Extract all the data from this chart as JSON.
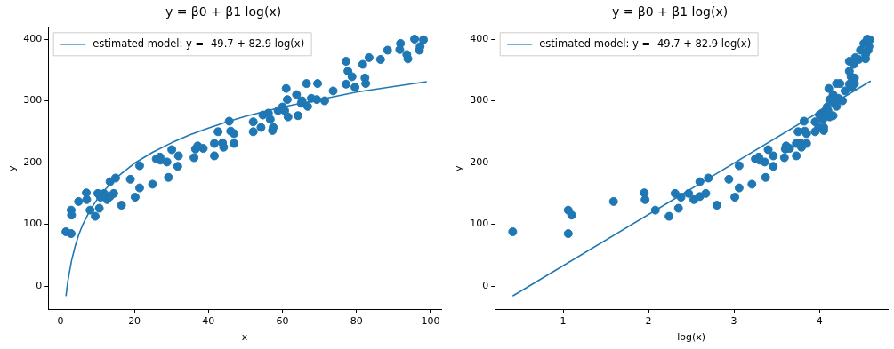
{
  "chart_data": [
    {
      "type": "scatter",
      "title": "y = β0 + β1 log(x)",
      "xlabel": "x",
      "ylabel": "y",
      "xlim": [
        -3.3,
        102.9
      ],
      "ylim": [
        -38,
        419
      ],
      "xticks": [
        0,
        20,
        40,
        60,
        80,
        100
      ],
      "yticks": [
        0,
        100,
        200,
        300,
        400
      ],
      "grid": false,
      "legend": "top left",
      "marker": "circle",
      "series": [
        {
          "color": "#1f77b4",
          "x": [
            1.5,
            2.9,
            2.9,
            3.0,
            4.9,
            7.0,
            7.1,
            8.0,
            9.4,
            10.5,
            10.1,
            10.8,
            11.8,
            12.6,
            13.4,
            14.4,
            13.4,
            14.9,
            16.5,
            18.9,
            20.2,
            21.4,
            21.4,
            24.9,
            25.9,
            26.9,
            27.0,
            28.8,
            29.2,
            30.1,
            31.7,
            31.9,
            36.1,
            36.5,
            37.1,
            38.6,
            41.6,
            41.6,
            42.6,
            43.8,
            44.1,
            45.6,
            46.0,
            46.9,
            46.9,
            52.1,
            52.1,
            54.2,
            54.7,
            56.2,
            56.7,
            57.3,
            57.5,
            58.8,
            60.0,
            60.6,
            61.3,
            61.0,
            61.5,
            63.8,
            64.2,
            65.1,
            65.3,
            66.5,
            66.8,
            67.8,
            69.5,
            69.3,
            71.4,
            73.7,
            77.2,
            77.7,
            78.8,
            77.2,
            79.6,
            82.3,
            82.5,
            81.7,
            83.4,
            86.5,
            88.4,
            91.9,
            91.7,
            93.6,
            93.9,
            95.7,
            98.1,
            97.0,
            97.2
          ],
          "values": [
            88,
            85,
            123,
            115,
            137,
            151,
            140,
            123,
            113,
            126,
            150,
            144,
            150,
            140,
            145,
            150,
            169,
            175,
            131,
            173,
            144,
            159,
            195,
            165,
            206,
            209,
            204,
            201,
            176,
            221,
            194,
            211,
            208,
            222,
            227,
            223,
            211,
            231,
            250,
            232,
            225,
            267,
            251,
            247,
            231,
            266,
            250,
            257,
            277,
            280,
            270,
            252,
            257,
            284,
            290,
            284,
            302,
            320,
            274,
            310,
            276,
            296,
            300,
            328,
            291,
            304,
            328,
            302,
            300,
            316,
            364,
            348,
            339,
            327,
            322,
            337,
            328,
            359,
            370,
            367,
            382,
            393,
            383,
            375,
            368,
            400,
            399,
            382,
            388
          ]
        },
        {
          "type": "line",
          "marker": "none",
          "name": "estimated model: y = -49.7 + 82.9 log(x)",
          "color": "#1f77b4",
          "x": [
            1.5,
            2,
            3,
            4,
            5,
            6,
            8,
            10,
            12,
            15,
            20,
            25,
            30,
            35,
            40,
            45,
            50,
            60,
            70,
            80,
            90,
            99
          ],
          "values": [
            -16,
            8,
            41,
            65,
            84,
            99,
            123,
            141,
            156,
            175,
            199,
            217,
            232,
            245,
            256,
            266,
            275,
            290,
            302,
            314,
            323,
            331
          ]
        }
      ]
    },
    {
      "type": "scatter",
      "title": "y = β0 + β1 log(x)",
      "xlabel": "log(x)",
      "ylabel": "y",
      "xlim": [
        0.2,
        4.8
      ],
      "ylim": [
        -38,
        419
      ],
      "xticks": [
        1,
        2,
        3,
        4
      ],
      "yticks": [
        0,
        100,
        200,
        300,
        400
      ],
      "grid": false,
      "legend": "top left",
      "marker": "circle",
      "series": [
        {
          "color": "#1f77b4",
          "x": [
            0.41,
            1.06,
            1.06,
            1.1,
            1.59,
            1.95,
            1.96,
            2.08,
            2.24,
            2.35,
            2.31,
            2.38,
            2.47,
            2.53,
            2.6,
            2.67,
            2.6,
            2.7,
            2.8,
            2.94,
            3.01,
            3.06,
            3.06,
            3.21,
            3.25,
            3.29,
            3.3,
            3.36,
            3.37,
            3.4,
            3.46,
            3.46,
            3.59,
            3.6,
            3.61,
            3.65,
            3.73,
            3.73,
            3.75,
            3.78,
            3.79,
            3.82,
            3.83,
            3.85,
            3.85,
            3.95,
            3.95,
            3.99,
            4.0,
            4.03,
            4.04,
            4.05,
            4.05,
            4.07,
            4.09,
            4.1,
            4.12,
            4.11,
            4.12,
            4.16,
            4.16,
            4.18,
            4.2,
            4.2,
            4.22,
            4.24,
            4.27,
            4.3,
            4.35,
            4.35,
            4.37,
            4.35,
            4.38,
            4.41,
            4.41,
            4.4,
            4.42,
            4.46,
            4.48,
            4.52,
            4.54,
            4.54,
            4.56,
            4.59,
            4.57,
            4.58
          ],
          "values": [
            88,
            85,
            123,
            115,
            137,
            151,
            140,
            123,
            113,
            126,
            150,
            144,
            150,
            140,
            145,
            150,
            169,
            175,
            131,
            173,
            144,
            159,
            195,
            165,
            206,
            209,
            204,
            201,
            176,
            221,
            194,
            211,
            208,
            222,
            227,
            223,
            211,
            231,
            250,
            232,
            225,
            267,
            251,
            247,
            231,
            266,
            250,
            257,
            277,
            280,
            270,
            252,
            257,
            284,
            290,
            284,
            302,
            320,
            274,
            310,
            276,
            296,
            328,
            291,
            304,
            328,
            300,
            316,
            364,
            348,
            339,
            327,
            322,
            337,
            328,
            359,
            370,
            367,
            382,
            393,
            375,
            368,
            400,
            399,
            382,
            388
          ]
        },
        {
          "type": "line",
          "marker": "none",
          "name": "estimated model: y = -49.7 + 82.9 log(x)",
          "color": "#1f77b4",
          "x": [
            0.41,
            4.6
          ],
          "values": [
            -16,
            332
          ]
        }
      ]
    }
  ]
}
